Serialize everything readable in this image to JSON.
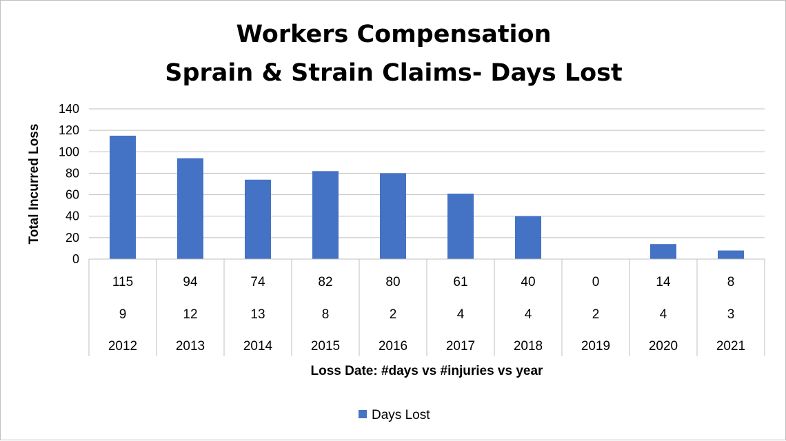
{
  "chart_data": {
    "type": "bar",
    "title": [
      "Workers Compensation",
      "Sprain & Strain Claims- Days Lost"
    ],
    "xlabel": "Loss Date: #days vs #injuries vs year",
    "ylabel": "Total Incurred Loss",
    "ylim": [
      0,
      140
    ],
    "yticks": [
      "0",
      "20",
      "40",
      "60",
      "80",
      "100",
      "120",
      "140"
    ],
    "grid": true,
    "legend": {
      "position": "bottom",
      "entries": [
        "Days Lost"
      ]
    },
    "colors": {
      "bar": "#4472c4",
      "grid": "#bfbfbf"
    },
    "categories": [
      [
        "115",
        "9",
        "2012"
      ],
      [
        "94",
        "12",
        "2013"
      ],
      [
        "74",
        "13",
        "2014"
      ],
      [
        "82",
        "8",
        "2015"
      ],
      [
        "80",
        "2",
        "2016"
      ],
      [
        "61",
        "4",
        "2017"
      ],
      [
        "40",
        "4",
        "2018"
      ],
      [
        "0",
        "2",
        "2019"
      ],
      [
        "14",
        "4",
        "2020"
      ],
      [
        "8",
        "3",
        "2021"
      ]
    ],
    "series": [
      {
        "name": "Days Lost",
        "values": [
          115,
          94,
          74,
          82,
          80,
          61,
          40,
          0,
          14,
          8
        ]
      }
    ]
  }
}
